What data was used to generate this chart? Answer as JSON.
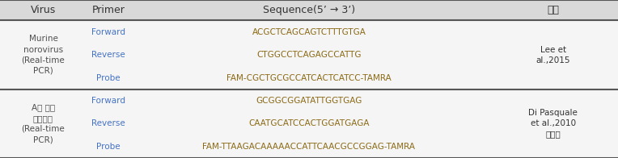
{
  "header": [
    "Virus",
    "Primer",
    "Sequence(5’ → 3’)",
    "출처"
  ],
  "rows": [
    {
      "virus": "Murine\nnorovirus\n(Real-time\nPCR)",
      "entries": [
        {
          "primer": "Forward",
          "sequence": "ACGCTCAGCAGTCTTTGTGA"
        },
        {
          "primer": "Reverse",
          "sequence": "CTGGCCTCAGAGCCATTG"
        },
        {
          "primer": "Probe",
          "sequence": "FAM-CGCTGCGCCATCACTCATCC-TAMRA"
        }
      ],
      "source": "Lee et\nal.,2015"
    },
    {
      "virus": "A형 간염\n바이러스\n(Real-time\nPCR)",
      "entries": [
        {
          "primer": "Forward",
          "sequence": "GCGGCGGATATTGGTGAG"
        },
        {
          "primer": "Reverse",
          "sequence": "CAATGCATCCACTGGATGAGA"
        },
        {
          "primer": "Probe",
          "sequence": "FAM-TTAAGACAAAAACCATTCAACGCCGGAG-TAMRA"
        }
      ],
      "source": "Di Pasquale\net al.,2010\n식약처"
    }
  ],
  "header_bg": "#d9d9d9",
  "text_color_korean": "#4f4f4f",
  "text_color_sequence": "#8b6914",
  "text_color_primer": "#4472c4",
  "text_color_header": "#333333",
  "text_color_source": "#333333",
  "line_color": "#555555",
  "fig_bg": "#f5f5f5"
}
